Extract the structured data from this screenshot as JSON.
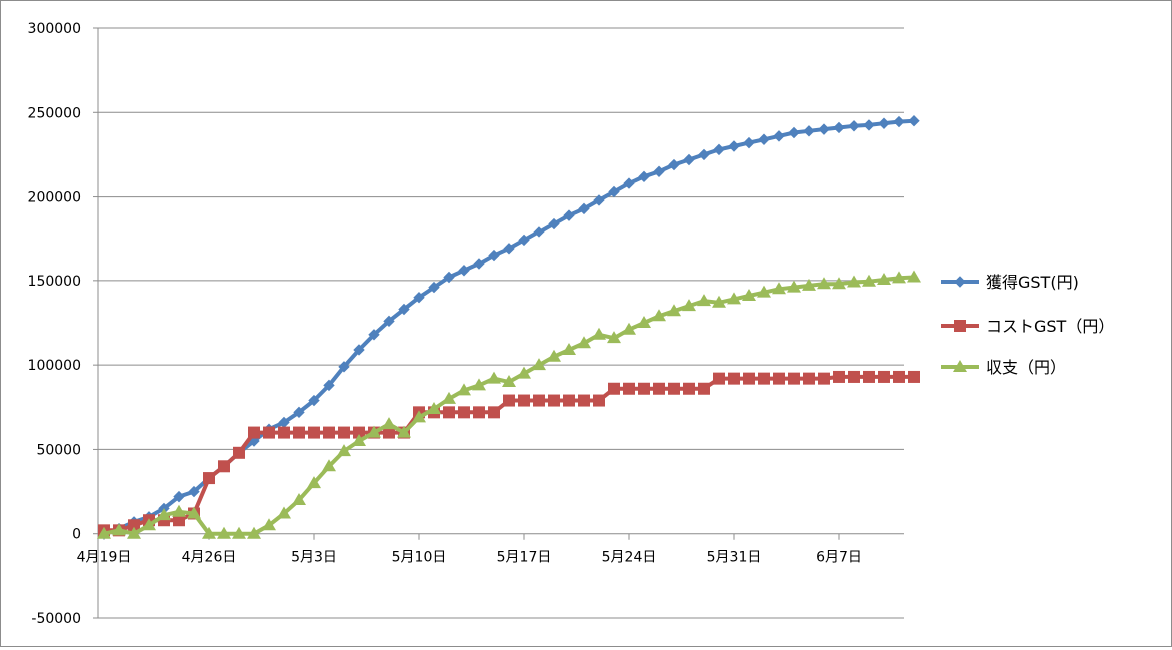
{
  "chart_data": {
    "type": "line",
    "title": "",
    "xlabel": "",
    "ylabel": "",
    "ylim": [
      -50000,
      300000
    ],
    "yticks": [
      300000,
      250000,
      200000,
      150000,
      100000,
      50000,
      0,
      -50000
    ],
    "x_start": "4月19日",
    "x_end": "6月10日",
    "xtick_labels": [
      "4月19日",
      "4月26日",
      "5月3日",
      "5月10日",
      "5月17日",
      "5月24日",
      "5月31日",
      "6月7日"
    ],
    "grid": true,
    "legend_position": "right",
    "series": [
      {
        "name": "獲得GST(円)",
        "color": "#4f81bd",
        "marker": "diamond",
        "values": [
          0,
          3000,
          7000,
          10000,
          15000,
          22000,
          25000,
          33000,
          40000,
          48000,
          55000,
          62000,
          66000,
          72000,
          79000,
          88000,
          99000,
          109000,
          118000,
          126000,
          133000,
          140000,
          146000,
          152000,
          156000,
          160000,
          165000,
          169000,
          174000,
          179000,
          184000,
          189000,
          193000,
          198000,
          203000,
          208000,
          212000,
          215000,
          219000,
          222000,
          225000,
          228000,
          230000,
          232000,
          234000,
          236000,
          238000,
          239000,
          240000,
          241000,
          242000,
          242500,
          243500,
          244500,
          245000
        ]
      },
      {
        "name": "コストGST（円）",
        "color": "#c0504d",
        "marker": "square",
        "values": [
          2000,
          2000,
          5000,
          8000,
          8000,
          8000,
          12000,
          33000,
          40000,
          48000,
          60000,
          60000,
          60000,
          60000,
          60000,
          60000,
          60000,
          60000,
          60000,
          60000,
          60000,
          72000,
          72000,
          72000,
          72000,
          72000,
          72000,
          79000,
          79000,
          79000,
          79000,
          79000,
          79000,
          79000,
          86000,
          86000,
          86000,
          86000,
          86000,
          86000,
          86000,
          92000,
          92000,
          92000,
          92000,
          92000,
          92000,
          92000,
          92000,
          93000,
          93000,
          93000,
          93000,
          93000,
          93000
        ]
      },
      {
        "name": "収支（円）",
        "color": "#9bbb59",
        "marker": "triangle",
        "values": [
          0,
          2000,
          0,
          5000,
          11000,
          13000,
          12000,
          0,
          0,
          0,
          0,
          5000,
          12000,
          20000,
          30000,
          40000,
          49000,
          55000,
          60000,
          65000,
          60000,
          69000,
          74000,
          80000,
          85000,
          88000,
          92000,
          90000,
          95000,
          100000,
          105000,
          109000,
          113000,
          118000,
          116000,
          121000,
          125000,
          129000,
          132000,
          135000,
          138000,
          137000,
          139000,
          141000,
          143000,
          145000,
          146000,
          147000,
          148000,
          148000,
          149000,
          149500,
          150500,
          151500,
          152000
        ]
      }
    ]
  }
}
